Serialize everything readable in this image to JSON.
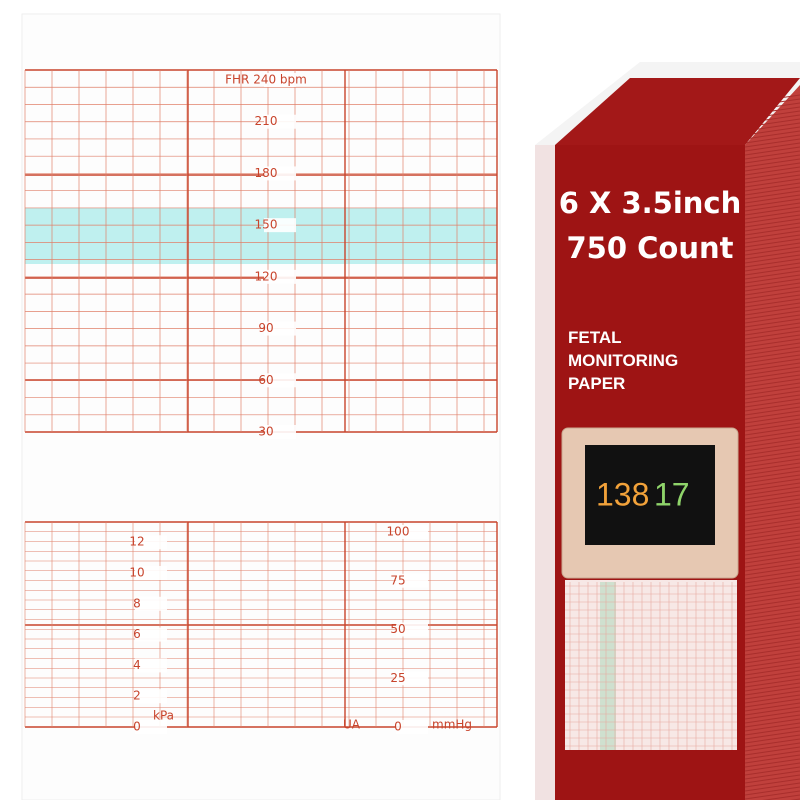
{
  "paper": {
    "fhr_label": "FHR 240 bpm",
    "fhr_ticks": [
      210,
      180,
      150,
      120,
      90,
      60,
      30
    ],
    "kpa_ticks": [
      12,
      10,
      8,
      6,
      4,
      2,
      0
    ],
    "kpa_label": "kPa",
    "ua_ticks": [
      100,
      75,
      50,
      25,
      0
    ],
    "ua_label": "UA",
    "mmhg_label": "mmHg"
  },
  "product": {
    "size": "6 X 3.5inch",
    "count": "750 Count",
    "name_lines": [
      "FETAL",
      "MONITORING",
      "PAPER"
    ],
    "monitor_values": [
      "138",
      "17"
    ]
  }
}
